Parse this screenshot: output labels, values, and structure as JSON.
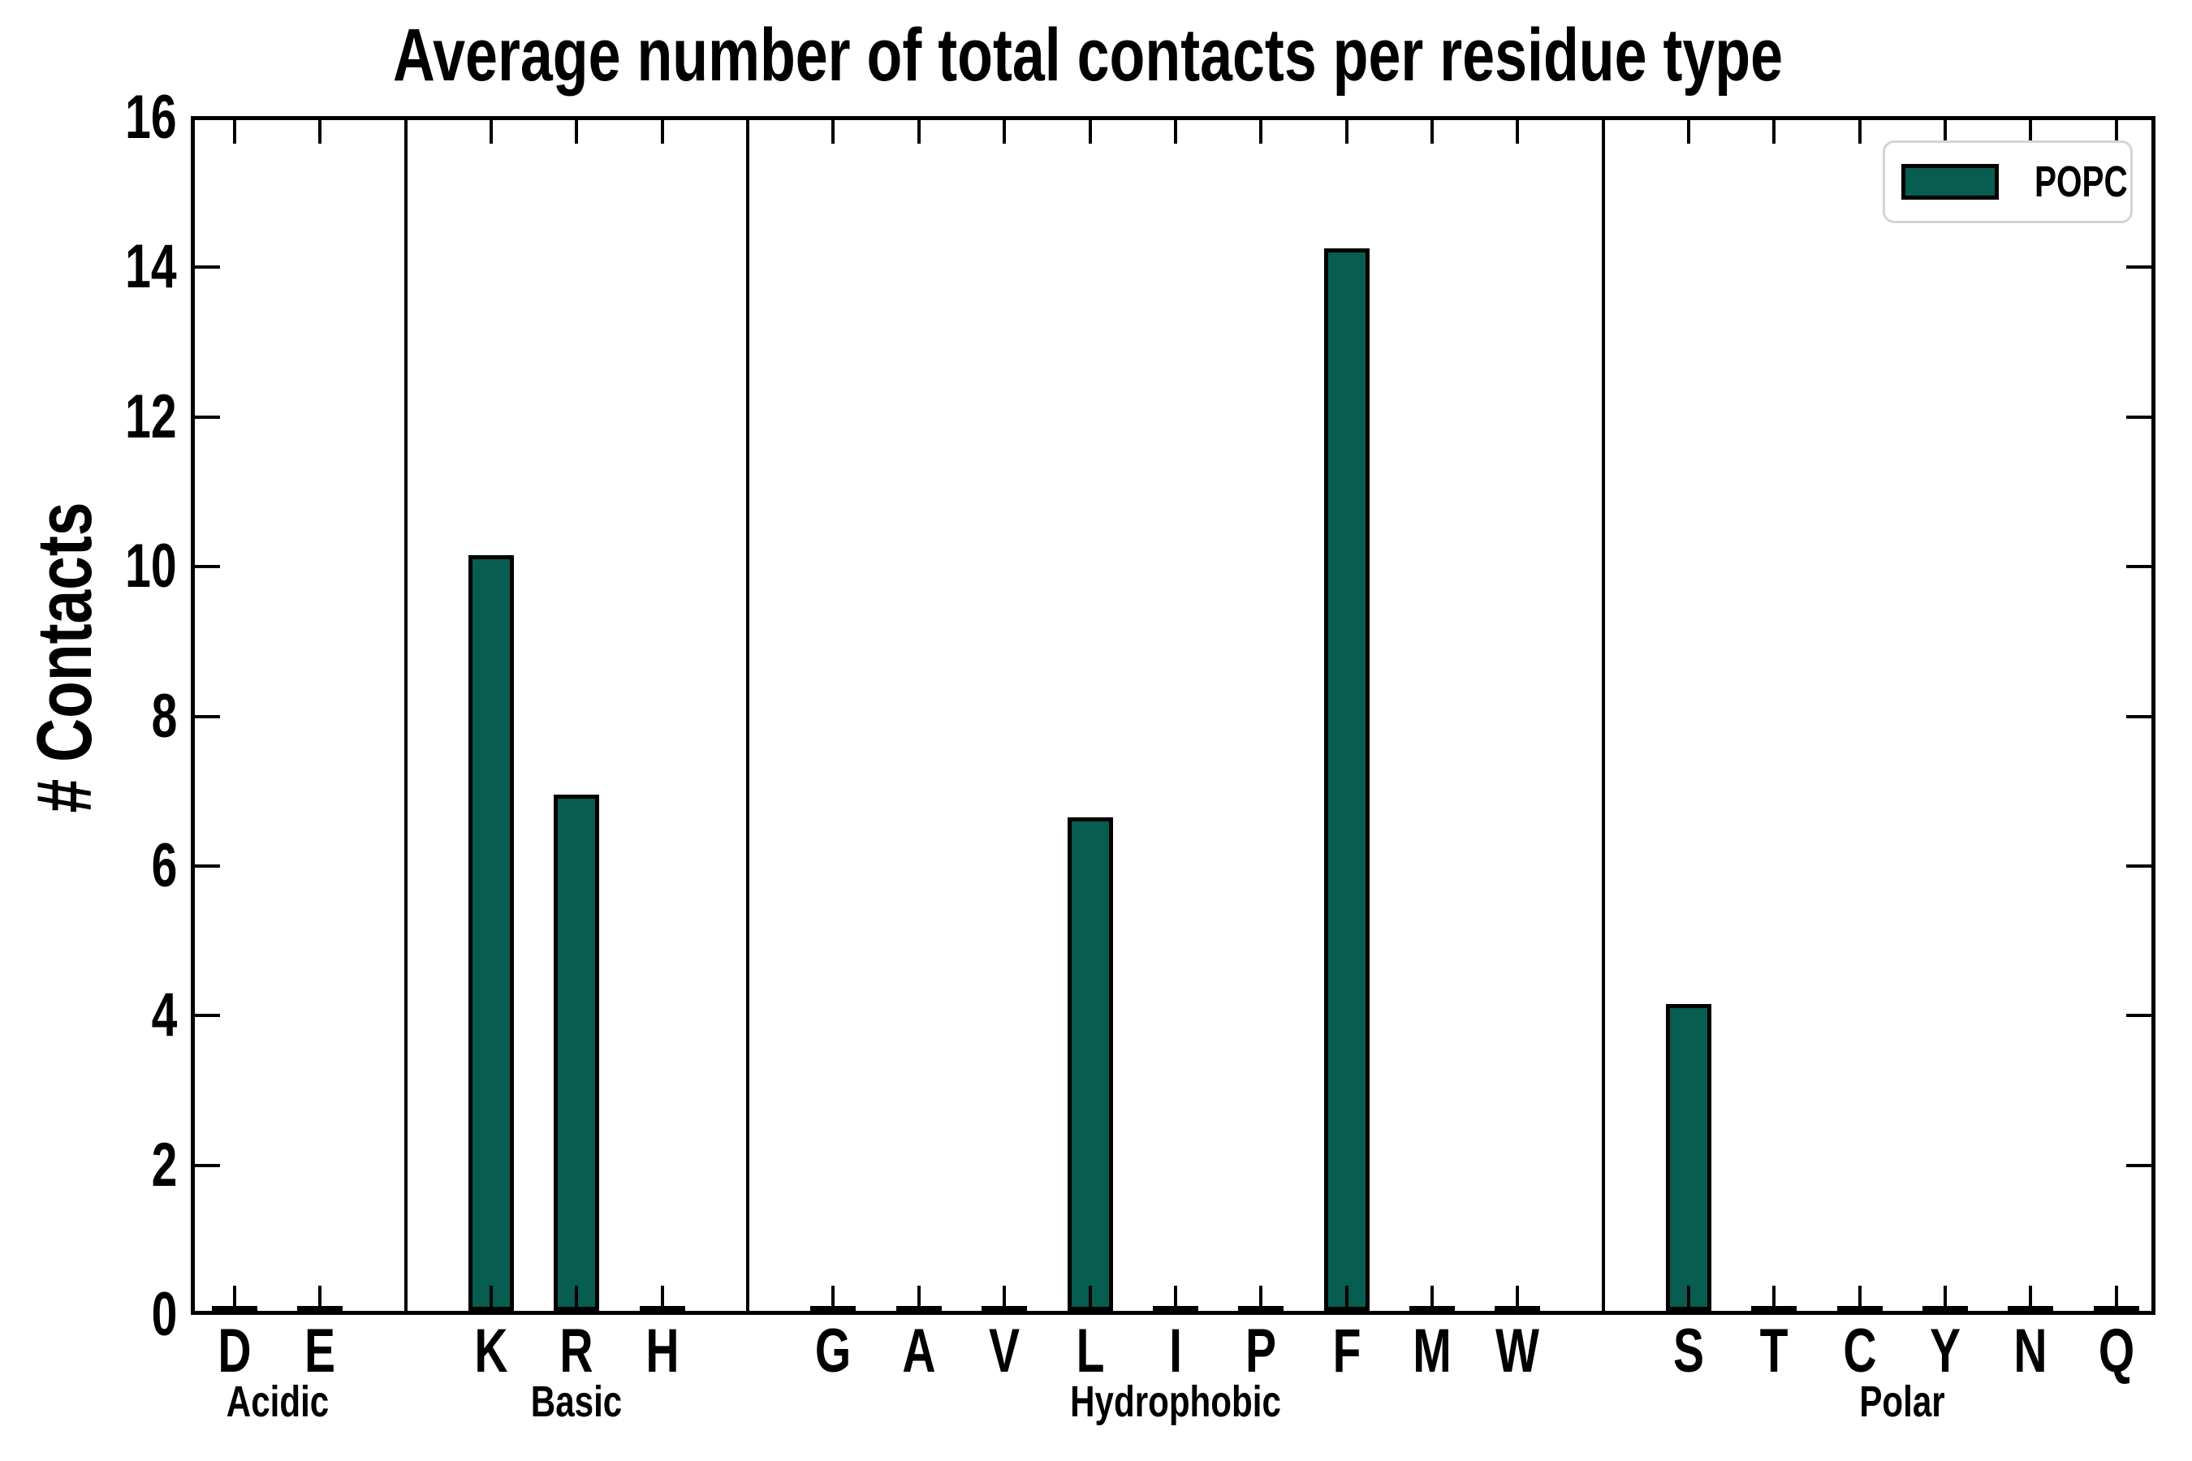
{
  "chart_data": {
    "type": "bar",
    "title": "Average number of total contacts per residue type",
    "ylabel": "# Contacts",
    "xlabel": "",
    "ylim": [
      0,
      16
    ],
    "yticks": [
      0,
      2,
      4,
      6,
      8,
      10,
      12,
      14,
      16
    ],
    "grid": false,
    "legend": {
      "label": "POPC",
      "position": "upper right"
    },
    "colors": {
      "bar_fill": "#075d50",
      "bar_edge": "#000000",
      "axis": "#000000",
      "legend_border": "#d4d4d4",
      "background": "#ffffff"
    },
    "groups": [
      {
        "label": "Acidic",
        "bars": [
          {
            "residue": "D",
            "value": 0.03
          },
          {
            "residue": "E",
            "value": 0.03
          }
        ]
      },
      {
        "label": "Basic",
        "bars": [
          {
            "residue": "K",
            "value": 10.1
          },
          {
            "residue": "R",
            "value": 6.9
          },
          {
            "residue": "H",
            "value": 0.03
          }
        ]
      },
      {
        "label": "Hydrophobic",
        "bars": [
          {
            "residue": "G",
            "value": 0.03
          },
          {
            "residue": "A",
            "value": 0.03
          },
          {
            "residue": "V",
            "value": 0.03
          },
          {
            "residue": "L",
            "value": 6.6
          },
          {
            "residue": "I",
            "value": 0.03
          },
          {
            "residue": "P",
            "value": 0.03
          },
          {
            "residue": "F",
            "value": 14.2
          },
          {
            "residue": "M",
            "value": 0.03
          },
          {
            "residue": "W",
            "value": 0.03
          }
        ]
      },
      {
        "label": "Polar",
        "bars": [
          {
            "residue": "S",
            "value": 4.1
          },
          {
            "residue": "T",
            "value": 0.03
          },
          {
            "residue": "C",
            "value": 0.03
          },
          {
            "residue": "Y",
            "value": 0.03
          },
          {
            "residue": "N",
            "value": 0.03
          },
          {
            "residue": "Q",
            "value": 0.03
          }
        ]
      }
    ]
  }
}
